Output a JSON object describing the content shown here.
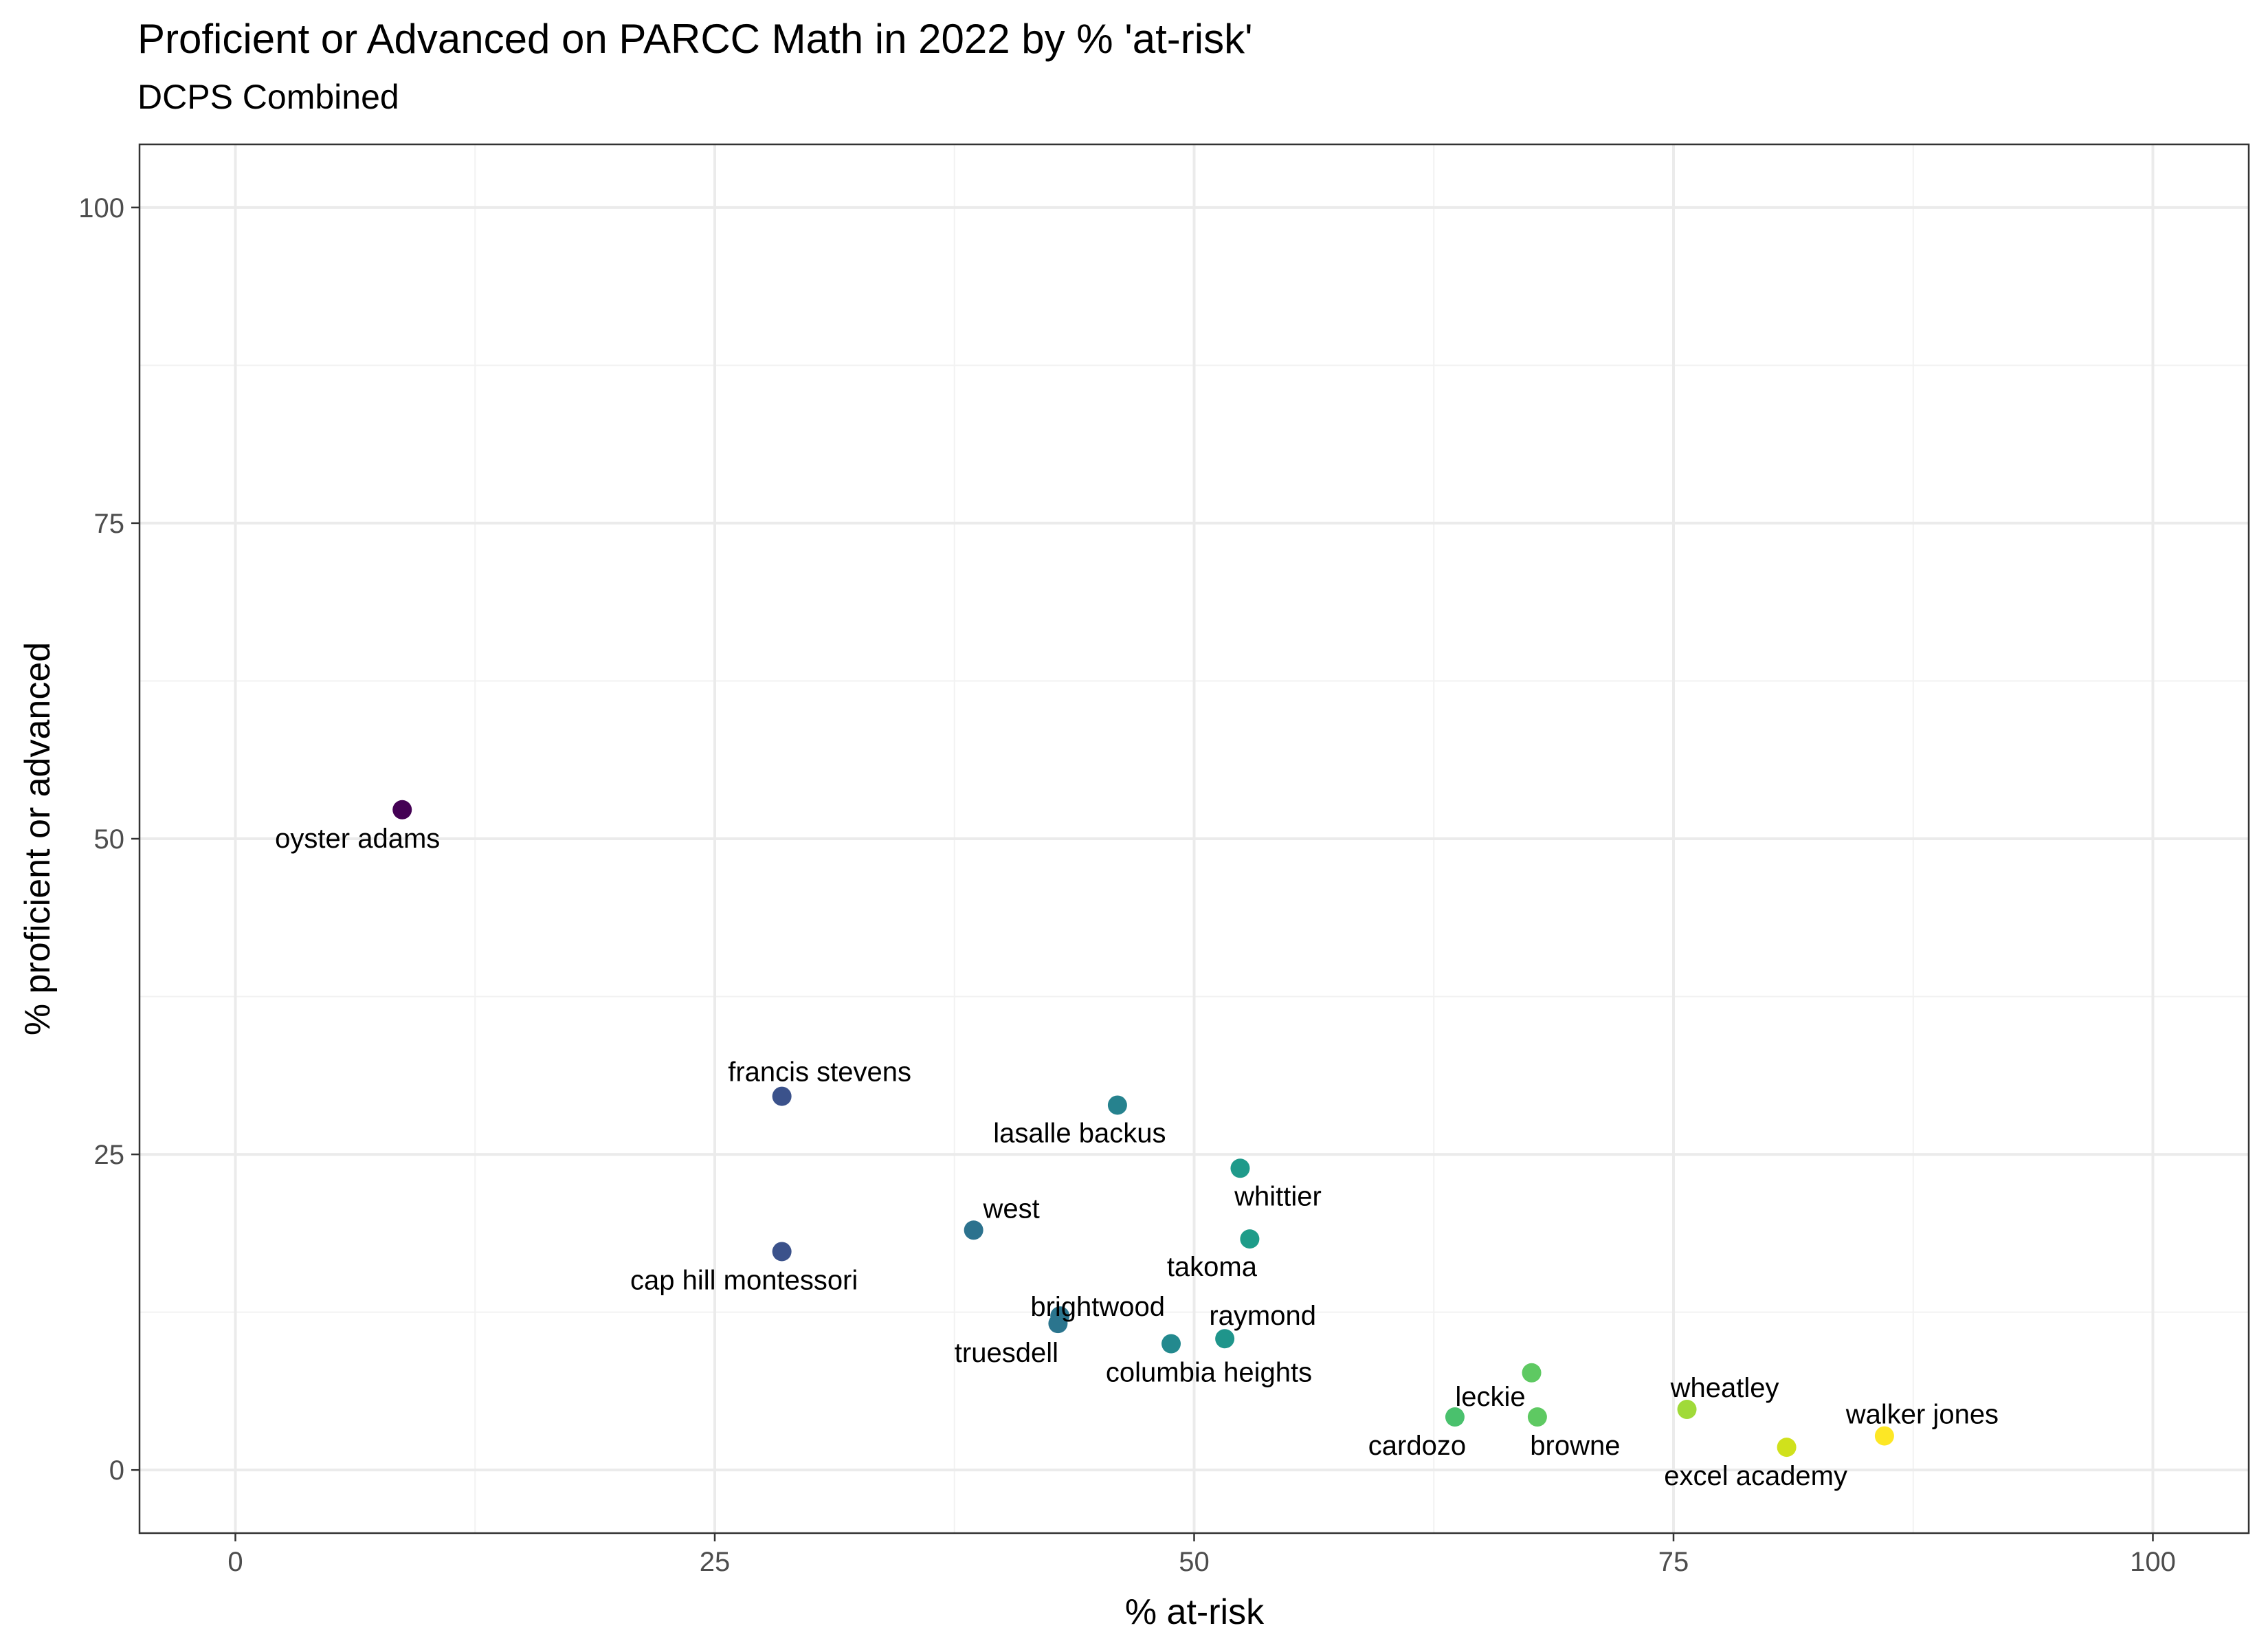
{
  "chart_data": {
    "type": "scatter",
    "title": "Proficient or Advanced on PARCC Math in 2022 by % 'at-risk'",
    "subtitle": "DCPS Combined",
    "xlabel": "% at-risk",
    "ylabel": "% proficient or advanced",
    "xlim": [
      -5,
      105
    ],
    "ylim": [
      -5,
      105
    ],
    "x_ticks": [
      0,
      25,
      50,
      75,
      100
    ],
    "y_ticks": [
      0,
      25,
      50,
      75,
      100
    ],
    "x_tick_labels": [
      "0",
      "25",
      "50",
      "75",
      "100"
    ],
    "y_tick_labels": [
      "0",
      "25",
      "50",
      "75",
      "100"
    ],
    "grid": true,
    "color_scale": "viridis (by % at-risk)",
    "points": [
      {
        "label": "oyster adams",
        "x": 8.7,
        "y": 52.3,
        "color": "#440154"
      },
      {
        "label": "francis stevens",
        "x": 28.5,
        "y": 29.6,
        "color": "#3b528b"
      },
      {
        "label": "cap hill montessori",
        "x": 28.5,
        "y": 17.3,
        "color": "#3b528b"
      },
      {
        "label": "west",
        "x": 38.5,
        "y": 19.0,
        "color": "#2c728e"
      },
      {
        "label": "lasalle backus",
        "x": 46.0,
        "y": 28.9,
        "color": "#26828e"
      },
      {
        "label": "brightwood",
        "x": 43.0,
        "y": 12.2,
        "color": "#2b758e"
      },
      {
        "label": "truesdell",
        "x": 42.9,
        "y": 11.6,
        "color": "#2b758e"
      },
      {
        "label": "columbia heights",
        "x": 48.8,
        "y": 10.0,
        "color": "#23898e"
      },
      {
        "label": "raymond",
        "x": 51.6,
        "y": 10.4,
        "color": "#1f958b"
      },
      {
        "label": "whittier",
        "x": 52.4,
        "y": 23.9,
        "color": "#1f9a8a"
      },
      {
        "label": "takoma",
        "x": 52.9,
        "y": 18.3,
        "color": "#1e9c89"
      },
      {
        "label": "cardozo",
        "x": 63.6,
        "y": 4.2,
        "color": "#4ac16d"
      },
      {
        "label": "leckie",
        "x": 67.6,
        "y": 7.7,
        "color": "#5ec962"
      },
      {
        "label": "browne",
        "x": 67.9,
        "y": 4.2,
        "color": "#5ec962"
      },
      {
        "label": "wheatley",
        "x": 75.7,
        "y": 4.8,
        "color": "#a0da39"
      },
      {
        "label": "excel academy",
        "x": 80.9,
        "y": 1.8,
        "color": "#d0e11c"
      },
      {
        "label": "walker jones",
        "x": 86.0,
        "y": 2.7,
        "color": "#fde725"
      }
    ]
  }
}
